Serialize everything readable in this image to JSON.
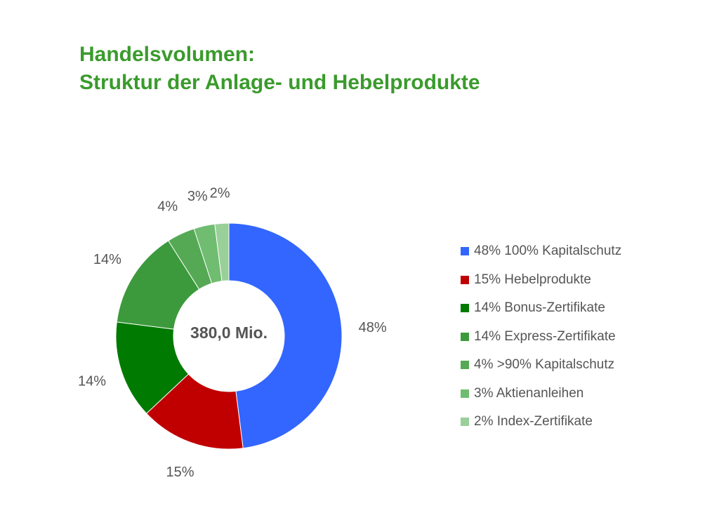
{
  "title": {
    "line1": "Handelsvolumen:",
    "line2": "Struktur der Anlage- und Hebelprodukte"
  },
  "chart_data": {
    "type": "pie",
    "variant": "donut",
    "center_label": "380,0 Mio.",
    "legend_position": "right",
    "series": [
      {
        "name": "100% Kapitalschutz",
        "value": 48,
        "label": "48%",
        "legend": "48% 100% Kapitalschutz",
        "color": "#3366ff"
      },
      {
        "name": "Hebelprodukte",
        "value": 15,
        "label": "15%",
        "legend": "15% Hebelprodukte",
        "color": "#c00000"
      },
      {
        "name": "Bonus-Zertifikate",
        "value": 14,
        "label": "14%",
        "legend": "14% Bonus-Zertifikate",
        "color": "#007a00"
      },
      {
        "name": "Express-Zertifikate",
        "value": 14,
        "label": "14%",
        "legend": "14% Express-Zertifikate",
        "color": "#3c9a3c"
      },
      {
        "name": ">90% Kapitalschutz",
        "value": 4,
        "label": "4%",
        "legend": "4% >90% Kapitalschutz",
        "color": "#55a955"
      },
      {
        "name": "Aktienanleihen",
        "value": 3,
        "label": "3%",
        "legend": "3% Aktienanleihen",
        "color": "#70bc70"
      },
      {
        "name": "Index-Zertifikate",
        "value": 2,
        "label": "2%",
        "legend": "2% Index-Zertifikate",
        "color": "#99d099"
      }
    ]
  }
}
